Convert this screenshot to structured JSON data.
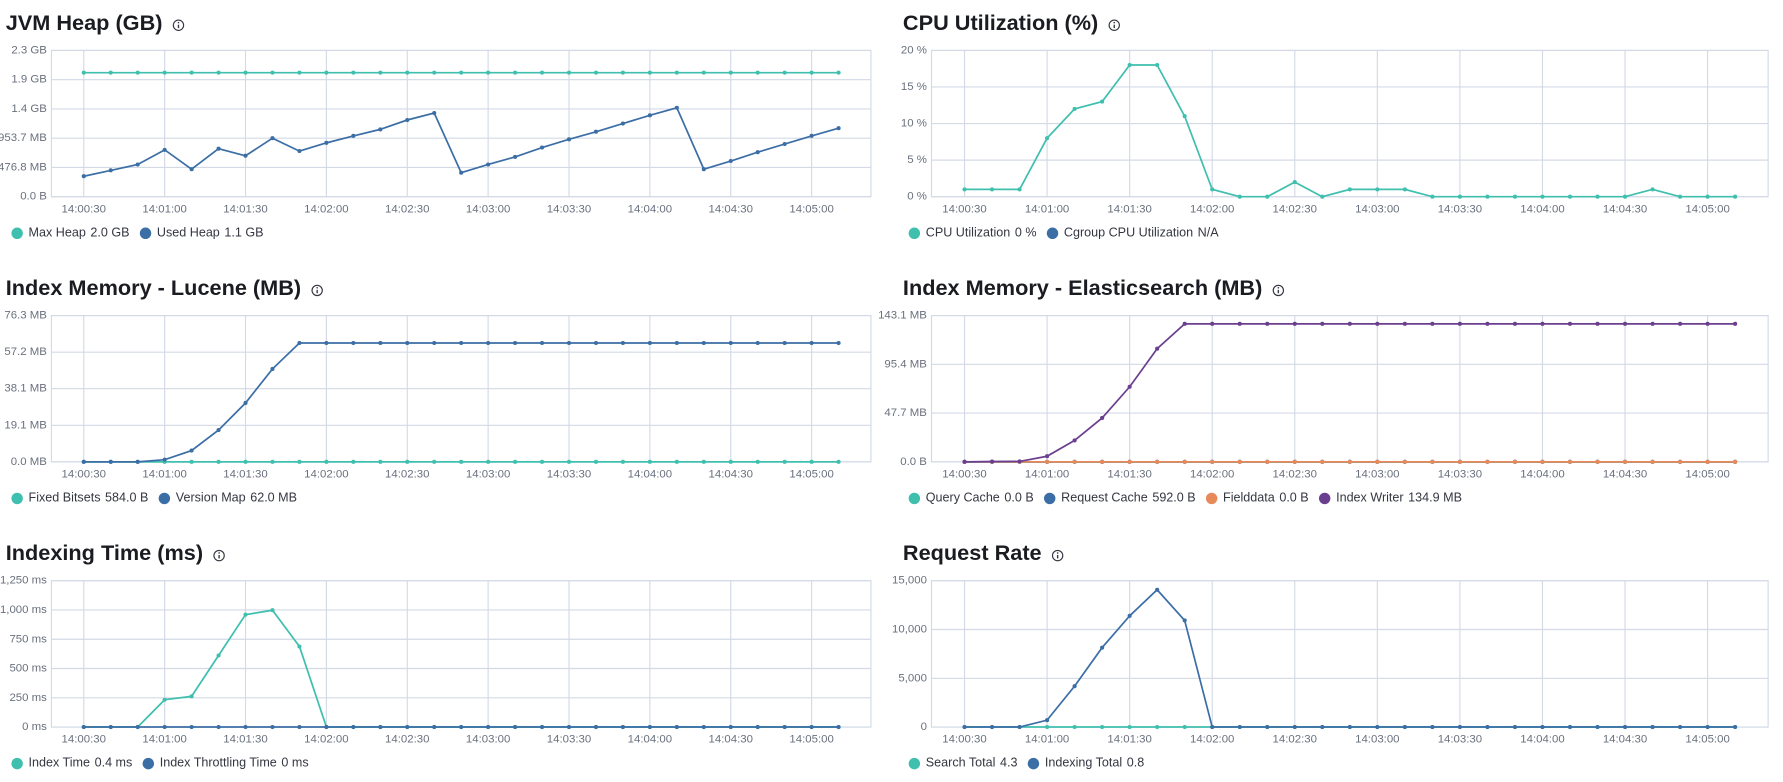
{
  "chart_data": [
    {
      "type": "line",
      "title": "JVM Heap (GB)",
      "x": [
        "14:00:30",
        "14:00:40",
        "14:00:50",
        "14:01:00",
        "14:01:10",
        "14:01:20",
        "14:01:30",
        "14:01:40",
        "14:01:50",
        "14:02:00",
        "14:02:10",
        "14:02:20",
        "14:02:30",
        "14:02:40",
        "14:02:50",
        "14:03:00",
        "14:03:10",
        "14:03:20",
        "14:03:30",
        "14:03:40",
        "14:03:50",
        "14:04:00",
        "14:04:10",
        "14:04:20",
        "14:04:30",
        "14:04:40",
        "14:04:50",
        "14:05:00",
        "14:05:10"
      ],
      "xlim": [
        "14:00:18",
        "14:05:22"
      ],
      "xticks": [
        "14:00:30",
        "14:01:00",
        "14:01:30",
        "14:02:00",
        "14:02:30",
        "14:03:00",
        "14:03:30",
        "14:04:00",
        "14:04:30",
        "14:05:00"
      ],
      "ylim": [
        0,
        2500000000
      ],
      "yticks": [
        {
          "value": 0,
          "label": "0.0 B"
        },
        {
          "value": 500000000,
          "label": "476.8 MB"
        },
        {
          "value": 1000000000,
          "label": "953.7 MB"
        },
        {
          "value": 1500000000,
          "label": "1.4 GB"
        },
        {
          "value": 2000000000,
          "label": "1.9 GB"
        },
        {
          "value": 2500000000,
          "label": "2.3 GB"
        }
      ],
      "grid": true,
      "series": [
        {
          "name": "Max Heap",
          "summary": "2.0 GB",
          "color": "#3fbfae",
          "values": [
            2120000000,
            2120000000,
            2120000000,
            2120000000,
            2120000000,
            2120000000,
            2120000000,
            2120000000,
            2120000000,
            2120000000,
            2120000000,
            2120000000,
            2120000000,
            2120000000,
            2120000000,
            2120000000,
            2120000000,
            2120000000,
            2120000000,
            2120000000,
            2120000000,
            2120000000,
            2120000000,
            2120000000,
            2120000000,
            2120000000,
            2120000000,
            2120000000,
            2120000000
          ]
        },
        {
          "name": "Used Heap",
          "summary": "1.1 GB",
          "color": "#3b6ea5",
          "values": [
            350000000,
            450000000,
            550000000,
            800000000,
            470000000,
            820000000,
            700000000,
            1000000000,
            780000000,
            920000000,
            1040000000,
            1150000000,
            1310000000,
            1430000000,
            410000000,
            550000000,
            680000000,
            840000000,
            980000000,
            1110000000,
            1250000000,
            1390000000,
            1520000000,
            470000000,
            610000000,
            760000000,
            900000000,
            1040000000,
            1170000000
          ]
        }
      ]
    },
    {
      "type": "line",
      "title": "CPU Utilization (%)",
      "x": [
        "14:00:30",
        "14:00:40",
        "14:00:50",
        "14:01:00",
        "14:01:10",
        "14:01:20",
        "14:01:30",
        "14:01:40",
        "14:01:50",
        "14:02:00",
        "14:02:10",
        "14:02:20",
        "14:02:30",
        "14:02:40",
        "14:02:50",
        "14:03:00",
        "14:03:10",
        "14:03:20",
        "14:03:30",
        "14:03:40",
        "14:03:50",
        "14:04:00",
        "14:04:10",
        "14:04:20",
        "14:04:30",
        "14:04:40",
        "14:04:50",
        "14:05:00",
        "14:05:10"
      ],
      "xlim": [
        "14:00:18",
        "14:05:22"
      ],
      "xticks": [
        "14:00:30",
        "14:01:00",
        "14:01:30",
        "14:02:00",
        "14:02:30",
        "14:03:00",
        "14:03:30",
        "14:04:00",
        "14:04:30",
        "14:05:00"
      ],
      "ylim": [
        0,
        20
      ],
      "yticks": [
        {
          "value": 0,
          "label": "0 %"
        },
        {
          "value": 5,
          "label": "5 %"
        },
        {
          "value": 10,
          "label": "10 %"
        },
        {
          "value": 15,
          "label": "15 %"
        },
        {
          "value": 20,
          "label": "20 %"
        }
      ],
      "grid": true,
      "series": [
        {
          "name": "CPU Utilization",
          "summary": "0 %",
          "color": "#3fbfae",
          "values": [
            1,
            1,
            1,
            8,
            12,
            13,
            18,
            18,
            11,
            1,
            0,
            0,
            2,
            0,
            1,
            1,
            1,
            0,
            0,
            0,
            0,
            0,
            0,
            0,
            0,
            1,
            0,
            0,
            0
          ]
        },
        {
          "name": "Cgroup CPU Utilization",
          "summary": "N/A",
          "color": "#3b6ea5"
        }
      ]
    },
    {
      "type": "line",
      "title": "Index Memory - Lucene (MB)",
      "x": [
        "14:00:30",
        "14:00:40",
        "14:00:50",
        "14:01:00",
        "14:01:10",
        "14:01:20",
        "14:01:30",
        "14:01:40",
        "14:01:50",
        "14:02:00",
        "14:02:10",
        "14:02:20",
        "14:02:30",
        "14:02:40",
        "14:02:50",
        "14:03:00",
        "14:03:10",
        "14:03:20",
        "14:03:30",
        "14:03:40",
        "14:03:50",
        "14:04:00",
        "14:04:10",
        "14:04:20",
        "14:04:30",
        "14:04:40",
        "14:04:50",
        "14:05:00",
        "14:05:10"
      ],
      "xlim": [
        "14:00:18",
        "14:05:22"
      ],
      "xticks": [
        "14:00:30",
        "14:01:00",
        "14:01:30",
        "14:02:00",
        "14:02:30",
        "14:03:00",
        "14:03:30",
        "14:04:00",
        "14:04:30",
        "14:05:00"
      ],
      "ylim": [
        0,
        80000000
      ],
      "yticks": [
        {
          "value": 0,
          "label": "0.0 MB"
        },
        {
          "value": 20000000,
          "label": "19.1 MB"
        },
        {
          "value": 40000000,
          "label": "38.1 MB"
        },
        {
          "value": 60000000,
          "label": "57.2 MB"
        },
        {
          "value": 80000000,
          "label": "76.3 MB"
        }
      ],
      "grid": true,
      "series": [
        {
          "name": "Fixed Bitsets",
          "summary": "584.0 B",
          "color": "#3fbfae",
          "values": [
            584,
            584,
            584,
            584,
            584,
            584,
            584,
            584,
            584,
            584,
            584,
            584,
            584,
            584,
            584,
            584,
            584,
            584,
            584,
            584,
            584,
            584,
            584,
            584,
            584,
            584,
            584,
            584,
            584
          ]
        },
        {
          "name": "Version Map",
          "summary": "62.0 MB",
          "color": "#3b6ea5",
          "values": [
            0,
            0,
            0,
            1200000,
            6200000,
            17400000,
            32200000,
            50800000,
            65000000,
            65000000,
            65000000,
            65000000,
            65000000,
            65000000,
            65000000,
            65000000,
            65000000,
            65000000,
            65000000,
            65000000,
            65000000,
            65000000,
            65000000,
            65000000,
            65000000,
            65000000,
            65000000,
            65000000,
            65000000
          ]
        }
      ]
    },
    {
      "type": "line",
      "title": "Index Memory - Elasticsearch (MB)",
      "x": [
        "14:00:30",
        "14:00:40",
        "14:00:50",
        "14:01:00",
        "14:01:10",
        "14:01:20",
        "14:01:30",
        "14:01:40",
        "14:01:50",
        "14:02:00",
        "14:02:10",
        "14:02:20",
        "14:02:30",
        "14:02:40",
        "14:02:50",
        "14:03:00",
        "14:03:10",
        "14:03:20",
        "14:03:30",
        "14:03:40",
        "14:03:50",
        "14:04:00",
        "14:04:10",
        "14:04:20",
        "14:04:30",
        "14:04:40",
        "14:04:50",
        "14:05:00",
        "14:05:10"
      ],
      "xlim": [
        "14:00:18",
        "14:05:22"
      ],
      "xticks": [
        "14:00:30",
        "14:01:00",
        "14:01:30",
        "14:02:00",
        "14:02:30",
        "14:03:00",
        "14:03:30",
        "14:04:00",
        "14:04:30",
        "14:05:00"
      ],
      "ylim": [
        0,
        150000000
      ],
      "yticks": [
        {
          "value": 0,
          "label": "0.0 B"
        },
        {
          "value": 50000000,
          "label": "47.7 MB"
        },
        {
          "value": 100000000,
          "label": "95.4 MB"
        },
        {
          "value": 150000000,
          "label": "143.1 MB"
        }
      ],
      "grid": true,
      "series": [
        {
          "name": "Query Cache",
          "summary": "0.0 B",
          "color": "#3fbfae",
          "values": [
            0,
            0,
            0,
            0,
            0,
            0,
            0,
            0,
            0,
            0,
            0,
            0,
            0,
            0,
            0,
            0,
            0,
            0,
            0,
            0,
            0,
            0,
            0,
            0,
            0,
            0,
            0,
            0,
            0
          ]
        },
        {
          "name": "Request Cache",
          "summary": "592.0 B",
          "color": "#3b6ea5",
          "values": [
            592,
            592,
            592,
            592,
            592,
            592,
            592,
            592,
            592,
            592,
            592,
            592,
            592,
            592,
            592,
            592,
            592,
            592,
            592,
            592,
            592,
            592,
            592,
            592,
            592,
            592,
            592,
            592,
            592
          ]
        },
        {
          "name": "Fielddata",
          "summary": "0.0 B",
          "color": "#e7895a",
          "values": [
            0,
            0,
            0,
            0,
            0,
            0,
            0,
            0,
            0,
            0,
            0,
            0,
            0,
            0,
            0,
            0,
            0,
            0,
            0,
            0,
            0,
            0,
            0,
            0,
            0,
            0,
            0,
            0,
            0
          ]
        },
        {
          "name": "Index Writer",
          "summary": "134.9 MB",
          "color": "#6b3f8f",
          "values": [
            0,
            300000,
            500000,
            5800000,
            22000000,
            45000000,
            77000000,
            116000000,
            141500000,
            141500000,
            141500000,
            141500000,
            141500000,
            141500000,
            141500000,
            141500000,
            141500000,
            141500000,
            141500000,
            141500000,
            141500000,
            141500000,
            141500000,
            141500000,
            141500000,
            141500000,
            141500000,
            141500000,
            141500000
          ]
        }
      ]
    },
    {
      "type": "line",
      "title": "Indexing Time (ms)",
      "x": [
        "14:00:30",
        "14:00:40",
        "14:00:50",
        "14:01:00",
        "14:01:10",
        "14:01:20",
        "14:01:30",
        "14:01:40",
        "14:01:50",
        "14:02:00",
        "14:02:10",
        "14:02:20",
        "14:02:30",
        "14:02:40",
        "14:02:50",
        "14:03:00",
        "14:03:10",
        "14:03:20",
        "14:03:30",
        "14:03:40",
        "14:03:50",
        "14:04:00",
        "14:04:10",
        "14:04:20",
        "14:04:30",
        "14:04:40",
        "14:04:50",
        "14:05:00",
        "14:05:10"
      ],
      "xlim": [
        "14:00:18",
        "14:05:22"
      ],
      "xticks": [
        "14:00:30",
        "14:01:00",
        "14:01:30",
        "14:02:00",
        "14:02:30",
        "14:03:00",
        "14:03:30",
        "14:04:00",
        "14:04:30",
        "14:05:00"
      ],
      "ylim": [
        0,
        1250
      ],
      "yticks": [
        {
          "value": 0,
          "label": "0 ms"
        },
        {
          "value": 250,
          "label": "250 ms"
        },
        {
          "value": 500,
          "label": "500 ms"
        },
        {
          "value": 750,
          "label": "750 ms"
        },
        {
          "value": 1000,
          "label": "1,000 ms"
        },
        {
          "value": 1250,
          "label": "1,250 ms"
        }
      ],
      "grid": true,
      "series": [
        {
          "name": "Index Time",
          "summary": "0.4 ms",
          "color": "#3fbfae",
          "values": [
            0,
            0,
            0,
            233,
            262,
            611,
            960,
            998,
            688,
            0,
            0,
            0,
            0,
            0,
            0,
            0,
            0,
            0,
            0,
            0,
            0,
            0,
            0,
            0,
            0,
            0,
            0,
            0,
            0
          ]
        },
        {
          "name": "Index Throttling Time",
          "summary": "0 ms",
          "color": "#3b6ea5",
          "values": [
            0,
            0,
            0,
            0,
            0,
            0,
            0,
            0,
            0,
            0,
            0,
            0,
            0,
            0,
            0,
            0,
            0,
            0,
            0,
            0,
            0,
            0,
            0,
            0,
            0,
            0,
            0,
            0,
            0
          ]
        }
      ]
    },
    {
      "type": "line",
      "title": "Request Rate",
      "x": [
        "14:00:30",
        "14:00:40",
        "14:00:50",
        "14:01:00",
        "14:01:10",
        "14:01:20",
        "14:01:30",
        "14:01:40",
        "14:01:50",
        "14:02:00",
        "14:02:10",
        "14:02:20",
        "14:02:30",
        "14:02:40",
        "14:02:50",
        "14:03:00",
        "14:03:10",
        "14:03:20",
        "14:03:30",
        "14:03:40",
        "14:03:50",
        "14:04:00",
        "14:04:10",
        "14:04:20",
        "14:04:30",
        "14:04:40",
        "14:04:50",
        "14:05:00",
        "14:05:10"
      ],
      "xlim": [
        "14:00:18",
        "14:05:22"
      ],
      "xticks": [
        "14:00:30",
        "14:01:00",
        "14:01:30",
        "14:02:00",
        "14:02:30",
        "14:03:00",
        "14:03:30",
        "14:04:00",
        "14:04:30",
        "14:05:00"
      ],
      "ylim": [
        0,
        15000
      ],
      "yticks": [
        0,
        {
          "value": 5000,
          "label": "5,000"
        },
        {
          "value": 10000,
          "label": "10,000"
        },
        {
          "value": 15000,
          "label": "15,000"
        }
      ],
      "grid": true,
      "series": [
        {
          "name": "Search Total",
          "summary": "4.3",
          "color": "#3fbfae",
          "values": [
            0,
            0,
            0,
            0,
            0,
            0,
            0,
            0,
            0,
            0,
            0,
            0,
            0,
            0,
            0,
            0,
            0,
            0,
            0,
            0,
            0,
            0,
            0,
            0,
            0,
            0,
            0,
            0,
            0
          ]
        },
        {
          "name": "Indexing Total",
          "summary": "0.8",
          "color": "#3b6ea5",
          "values": [
            0,
            0,
            0,
            700,
            4190,
            8140,
            11400,
            14070,
            10930,
            0,
            0,
            0,
            0,
            0,
            0,
            0,
            0,
            0,
            0,
            0,
            0,
            0,
            0,
            0,
            0,
            0,
            0,
            0,
            0
          ]
        }
      ]
    }
  ]
}
